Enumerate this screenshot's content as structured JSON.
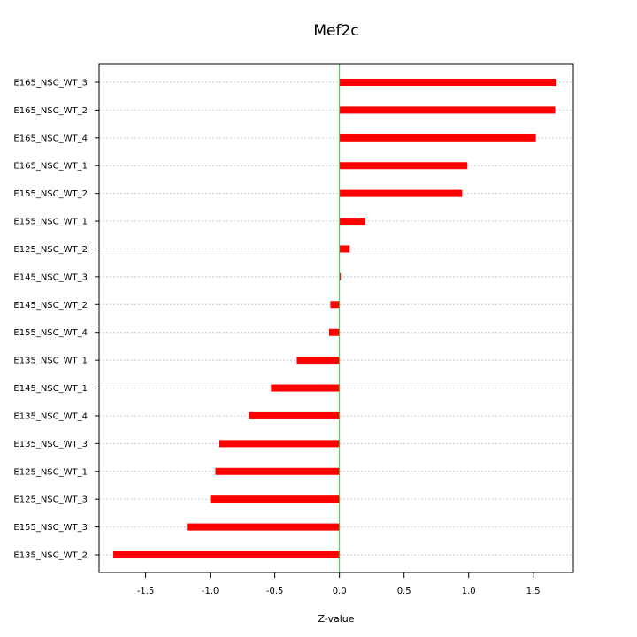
{
  "chart_data": {
    "type": "bar",
    "orientation": "horizontal",
    "title": "Mef2c",
    "xlabel": "Z-value",
    "ylabel": "",
    "xlim": [
      -1.86,
      1.81
    ],
    "xticks": [
      -1.5,
      -1.0,
      -0.5,
      0.0,
      0.5,
      1.0,
      1.5
    ],
    "xtick_labels": [
      "-1.5",
      "-1.0",
      "-0.5",
      "0.0",
      "0.5",
      "1.0",
      "1.5"
    ],
    "grid": "horizontal dotted lines at each category",
    "reference_line": {
      "x": 0,
      "color": "#33cc33"
    },
    "bar_color": "#ff0000",
    "categories": [
      "E165_NSC_WT_3",
      "E165_NSC_WT_2",
      "E165_NSC_WT_4",
      "E165_NSC_WT_1",
      "E155_NSC_WT_2",
      "E155_NSC_WT_1",
      "E125_NSC_WT_2",
      "E145_NSC_WT_3",
      "E145_NSC_WT_2",
      "E155_NSC_WT_4",
      "E135_NSC_WT_1",
      "E145_NSC_WT_1",
      "E135_NSC_WT_4",
      "E135_NSC_WT_3",
      "E125_NSC_WT_1",
      "E125_NSC_WT_3",
      "E155_NSC_WT_3",
      "E135_NSC_WT_2"
    ],
    "values": [
      1.68,
      1.67,
      1.52,
      0.99,
      0.95,
      0.2,
      0.08,
      0.01,
      -0.07,
      -0.08,
      -0.33,
      -0.53,
      -0.7,
      -0.93,
      -0.96,
      -1.0,
      -1.18,
      -1.75
    ]
  }
}
